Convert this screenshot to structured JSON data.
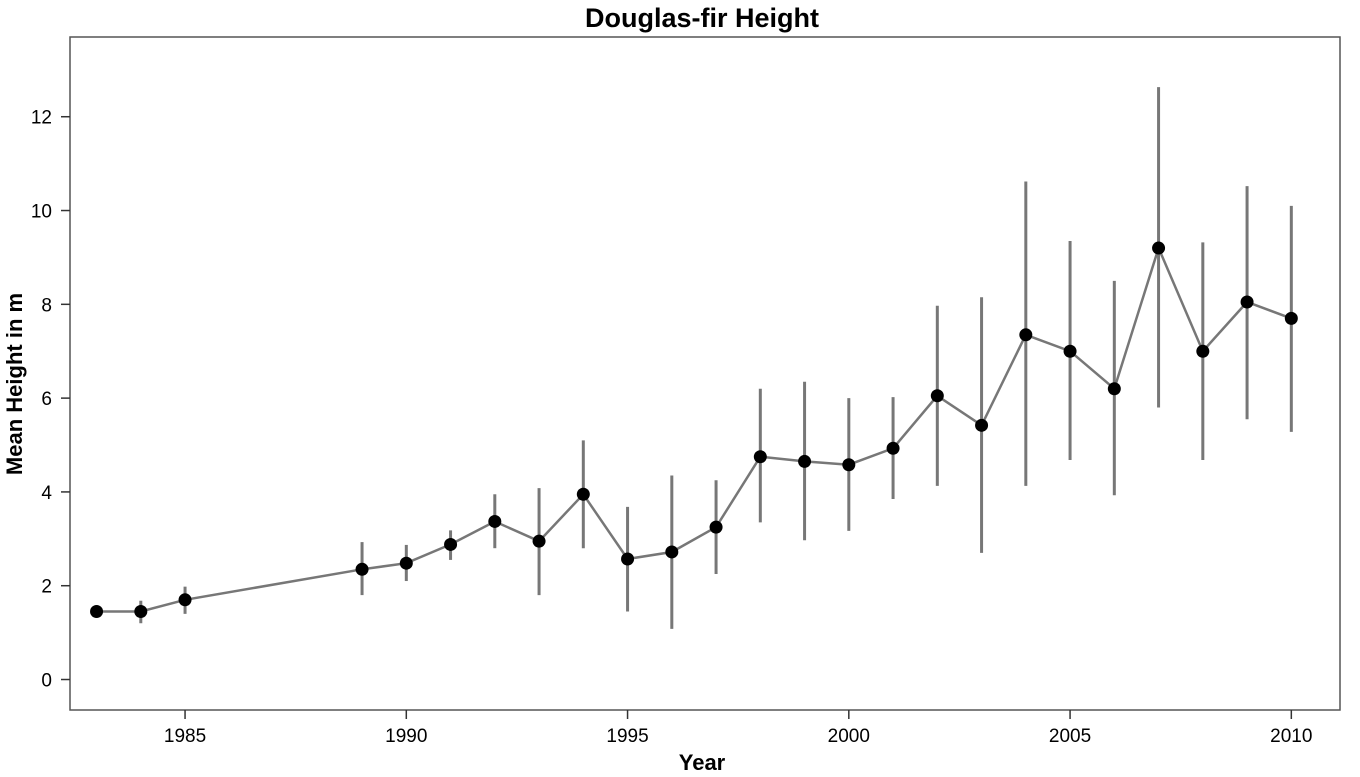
{
  "chart_data": {
    "type": "line",
    "title": "Douglas-fir Height",
    "xlabel": "Year",
    "ylabel": "Mean Height in m",
    "xlim": [
      1982.4,
      2011.1
    ],
    "ylim": [
      -0.65,
      13.7
    ],
    "xticks": [
      1985,
      1990,
      1995,
      2000,
      2005,
      2010
    ],
    "yticks": [
      0,
      2,
      4,
      6,
      8,
      10,
      12
    ],
    "grid": false,
    "series": [
      {
        "x": [
          1983,
          1984,
          1985,
          1989,
          1990,
          1991,
          1992,
          1993,
          1994,
          1995,
          1996,
          1997,
          1998,
          1999,
          2000,
          2001,
          2002,
          2003,
          2004,
          2005,
          2006,
          2007,
          2008,
          2009,
          2010
        ],
        "y": [
          1.45,
          1.45,
          1.7,
          2.35,
          2.48,
          2.88,
          3.37,
          2.95,
          3.95,
          2.57,
          2.72,
          3.25,
          4.75,
          4.65,
          4.58,
          4.93,
          6.05,
          5.42,
          7.35,
          7.0,
          6.2,
          9.2,
          7.0,
          8.05,
          7.7
        ],
        "err_low": [
          1.35,
          1.2,
          1.4,
          1.8,
          2.1,
          2.55,
          2.8,
          1.8,
          2.8,
          1.45,
          1.08,
          2.25,
          3.35,
          2.97,
          3.17,
          3.85,
          4.13,
          2.7,
          4.13,
          4.68,
          3.93,
          5.8,
          4.68,
          5.55,
          5.28
        ],
        "err_high": [
          1.58,
          1.68,
          1.98,
          2.93,
          2.87,
          3.18,
          3.95,
          4.08,
          5.1,
          3.68,
          4.35,
          4.25,
          6.2,
          6.35,
          6.0,
          6.02,
          7.97,
          8.15,
          10.62,
          9.35,
          8.5,
          12.63,
          9.32,
          10.52,
          10.1
        ]
      }
    ]
  }
}
